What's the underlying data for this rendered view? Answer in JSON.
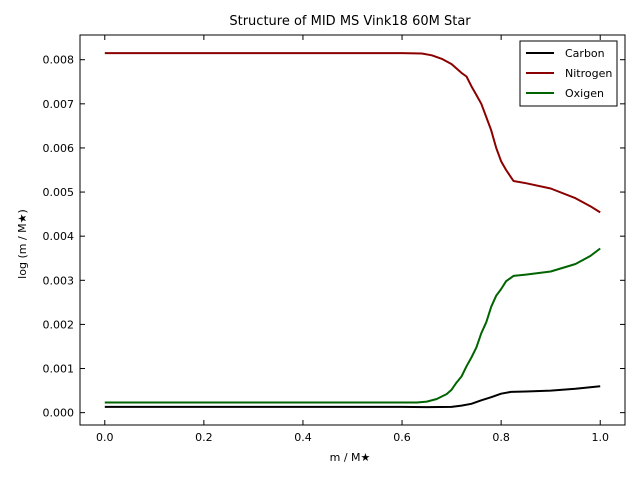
{
  "chart_data": {
    "type": "line",
    "title": "Structure of MID MS Vink18 60M Star",
    "xlabel": "m / M★",
    "ylabel": "log (m / M★)",
    "xlim": [
      -0.05,
      1.05
    ],
    "ylim": [
      -0.00028,
      0.00856
    ],
    "xticks": [
      0.0,
      0.2,
      0.4,
      0.6,
      0.8,
      1.0
    ],
    "xtick_labels": [
      "0.0",
      "0.2",
      "0.4",
      "0.6",
      "0.8",
      "1.0"
    ],
    "yticks": [
      0.0,
      0.001,
      0.002,
      0.003,
      0.004,
      0.005,
      0.006,
      0.007,
      0.008
    ],
    "ytick_labels": [
      "0.000",
      "0.001",
      "0.002",
      "0.003",
      "0.004",
      "0.005",
      "0.006",
      "0.007",
      "0.008"
    ],
    "grid": false,
    "legend_position": "top-right",
    "series": [
      {
        "name": "Carbon",
        "color": "#000000",
        "points": [
          [
            0.0,
            0.00013
          ],
          [
            0.2,
            0.00013
          ],
          [
            0.4,
            0.00013
          ],
          [
            0.6,
            0.00013
          ],
          [
            0.65,
            0.000125
          ],
          [
            0.7,
            0.00013
          ],
          [
            0.72,
            0.00016
          ],
          [
            0.74,
            0.0002
          ],
          [
            0.76,
            0.00028
          ],
          [
            0.78,
            0.00035
          ],
          [
            0.8,
            0.00043
          ],
          [
            0.82,
            0.00047
          ],
          [
            0.85,
            0.00048
          ],
          [
            0.9,
            0.0005
          ],
          [
            0.95,
            0.00054
          ],
          [
            1.0,
            0.0006
          ]
        ]
      },
      {
        "name": "Nitrogen",
        "color": "#8b0000",
        "points": [
          [
            0.0,
            0.00815
          ],
          [
            0.2,
            0.00815
          ],
          [
            0.4,
            0.00815
          ],
          [
            0.6,
            0.00815
          ],
          [
            0.64,
            0.00814
          ],
          [
            0.66,
            0.0081
          ],
          [
            0.68,
            0.00802
          ],
          [
            0.7,
            0.0079
          ],
          [
            0.72,
            0.0077
          ],
          [
            0.73,
            0.00762
          ],
          [
            0.74,
            0.0074
          ],
          [
            0.75,
            0.0072
          ],
          [
            0.76,
            0.007
          ],
          [
            0.77,
            0.0067
          ],
          [
            0.78,
            0.0064
          ],
          [
            0.79,
            0.006
          ],
          [
            0.8,
            0.0057
          ],
          [
            0.81,
            0.0055
          ],
          [
            0.825,
            0.00525
          ],
          [
            0.85,
            0.0052
          ],
          [
            0.9,
            0.00508
          ],
          [
            0.95,
            0.00486
          ],
          [
            0.98,
            0.00468
          ],
          [
            1.0,
            0.00454
          ]
        ]
      },
      {
        "name": "Oxigen",
        "color": "#006400",
        "points": [
          [
            0.0,
            0.00023
          ],
          [
            0.2,
            0.00023
          ],
          [
            0.4,
            0.00023
          ],
          [
            0.6,
            0.00023
          ],
          [
            0.63,
            0.00023
          ],
          [
            0.65,
            0.00025
          ],
          [
            0.67,
            0.00031
          ],
          [
            0.69,
            0.00042
          ],
          [
            0.7,
            0.00052
          ],
          [
            0.71,
            0.00068
          ],
          [
            0.72,
            0.00082
          ],
          [
            0.73,
            0.00105
          ],
          [
            0.74,
            0.00125
          ],
          [
            0.75,
            0.00148
          ],
          [
            0.76,
            0.0018
          ],
          [
            0.77,
            0.00205
          ],
          [
            0.78,
            0.0024
          ],
          [
            0.79,
            0.00265
          ],
          [
            0.8,
            0.0028
          ],
          [
            0.81,
            0.00298
          ],
          [
            0.825,
            0.0031
          ],
          [
            0.85,
            0.00313
          ],
          [
            0.9,
            0.0032
          ],
          [
            0.95,
            0.00337
          ],
          [
            0.98,
            0.00355
          ],
          [
            1.0,
            0.00372
          ]
        ]
      }
    ]
  }
}
